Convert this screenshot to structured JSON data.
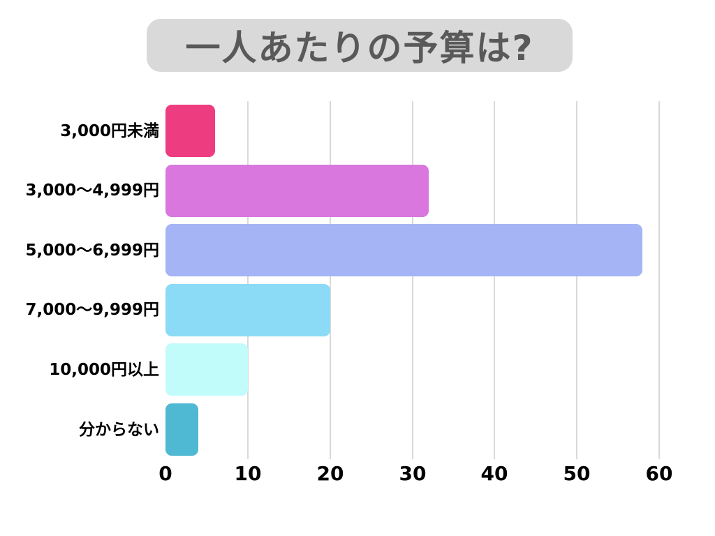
{
  "title": "一人あたりの予算は?",
  "chart_data": {
    "type": "bar",
    "orientation": "horizontal",
    "title": "一人あたりの予算は?",
    "categories": [
      "3,000円未満",
      "3,000〜4,999円",
      "5,000〜6,999円",
      "7,000〜9,999円",
      "10,000円以上",
      "分からない"
    ],
    "values": [
      6,
      32,
      58,
      20,
      10,
      4
    ],
    "bar_colors": [
      "#EE3C80",
      "#D977DF",
      "#A4B4F4",
      "#8CDBF6",
      "#C1FBFA",
      "#4FB8D2"
    ],
    "xticks": [
      0,
      10,
      20,
      30,
      40,
      50,
      60
    ],
    "xlim": [
      0,
      60
    ],
    "xlabel": "",
    "ylabel": "",
    "grid": "vertical",
    "legend": "none",
    "gridline_color": "#D9D9D9"
  },
  "styles": {
    "background": "#FFFFFF",
    "title_bg": "#D9D9D9",
    "title_color": "#595959",
    "label_color": "#000000",
    "tick_color": "#000000"
  }
}
